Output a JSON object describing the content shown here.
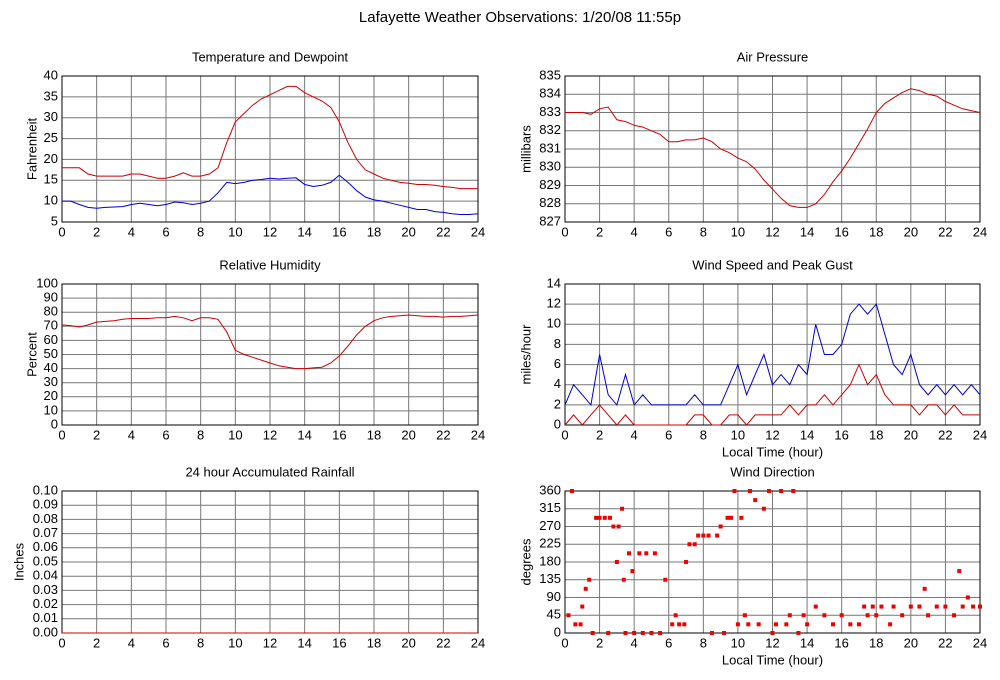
{
  "title": "Lafayette Weather Observations: 1/20/08 11:55p",
  "chart_data": [
    {
      "type": "line",
      "title": "Temperature and Dewpoint",
      "y_label": "Fahrenheit",
      "x": [
        0,
        0.5,
        1,
        1.5,
        2,
        2.5,
        3,
        3.5,
        4,
        4.5,
        5,
        5.5,
        6,
        6.5,
        7,
        7.5,
        8,
        8.5,
        9,
        9.5,
        10,
        10.5,
        11,
        11.5,
        12,
        12.5,
        13,
        13.5,
        14,
        14.5,
        15,
        15.5,
        16,
        16.5,
        17,
        17.5,
        18,
        18.5,
        19,
        19.5,
        20,
        20.5,
        21,
        21.5,
        22,
        22.5,
        23,
        23.5,
        24
      ],
      "series": [
        {
          "color": "#cc0000",
          "values": [
            18,
            18,
            18,
            16.5,
            16,
            16,
            16,
            16,
            16.5,
            16.5,
            16,
            15.5,
            15.5,
            16,
            16.8,
            16,
            16,
            16.5,
            18,
            24,
            29,
            31,
            33,
            34.5,
            35.5,
            36.5,
            37.5,
            37.5,
            36,
            35,
            34,
            32.5,
            29,
            24,
            20,
            17.5,
            16.5,
            15.5,
            15,
            14.5,
            14.3,
            14,
            14,
            13.8,
            13.5,
            13.3,
            13,
            13,
            13
          ]
        },
        {
          "color": "#0000cc",
          "values": [
            10,
            10,
            9.2,
            8.5,
            8.3,
            8.5,
            8.6,
            8.7,
            9.2,
            9.5,
            9.2,
            8.9,
            9.2,
            9.8,
            9.6,
            9.2,
            9.5,
            10,
            12,
            14.5,
            14.2,
            14.5,
            15,
            15.2,
            15.5,
            15.3,
            15.5,
            15.6,
            14,
            13.5,
            13.8,
            14.5,
            16.2,
            14.5,
            12.5,
            11,
            10.3,
            10,
            9.5,
            9,
            8.5,
            8,
            8,
            7.5,
            7.3,
            7,
            6.8,
            6.8,
            7
          ]
        }
      ],
      "xlim": [
        0,
        24
      ],
      "xticks": [
        0,
        2,
        4,
        6,
        8,
        10,
        12,
        14,
        16,
        18,
        20,
        22,
        24
      ],
      "ylim": [
        5,
        40
      ],
      "yticks": [
        5,
        10,
        15,
        20,
        25,
        30,
        35,
        40
      ],
      "grid": true
    },
    {
      "type": "line",
      "title": "Air Pressure",
      "y_label": "millibars",
      "x": [
        0,
        0.5,
        1,
        1.5,
        2,
        2.5,
        3,
        3.5,
        4,
        4.5,
        5,
        5.5,
        6,
        6.5,
        7,
        7.5,
        8,
        8.5,
        9,
        9.5,
        10,
        10.5,
        11,
        11.5,
        12,
        12.5,
        13,
        13.5,
        14,
        14.5,
        15,
        15.5,
        16,
        16.5,
        17,
        17.5,
        18,
        18.5,
        19,
        19.5,
        20,
        20.5,
        21,
        21.5,
        22,
        22.5,
        23,
        23.5,
        24
      ],
      "series": [
        {
          "color": "#cc0000",
          "values": [
            833,
            833,
            833,
            832.9,
            833.2,
            833.3,
            832.6,
            832.5,
            832.3,
            832.2,
            832.0,
            831.8,
            831.4,
            831.4,
            831.5,
            831.5,
            831.6,
            831.4,
            831.0,
            830.8,
            830.5,
            830.3,
            829.9,
            829.3,
            828.8,
            828.3,
            827.9,
            827.8,
            827.8,
            828.0,
            828.5,
            829.2,
            829.8,
            830.5,
            831.3,
            832.1,
            833.0,
            833.5,
            833.8,
            834.1,
            834.3,
            834.2,
            834.0,
            833.9,
            833.6,
            833.4,
            833.2,
            833.1,
            833.0
          ]
        }
      ],
      "xlim": [
        0,
        24
      ],
      "xticks": [
        0,
        2,
        4,
        6,
        8,
        10,
        12,
        14,
        16,
        18,
        20,
        22,
        24
      ],
      "ylim": [
        827,
        835
      ],
      "yticks": [
        827,
        828,
        829,
        830,
        831,
        832,
        833,
        834,
        835
      ],
      "grid": true
    },
    {
      "type": "line",
      "title": "Relative Humidity",
      "y_label": "Percent",
      "x": [
        0,
        0.5,
        1,
        1.5,
        2,
        2.5,
        3,
        3.5,
        4,
        4.5,
        5,
        5.5,
        6,
        6.5,
        7,
        7.5,
        8,
        8.5,
        9,
        9.5,
        10,
        10.5,
        11,
        11.5,
        12,
        12.5,
        13,
        13.5,
        14,
        14.5,
        15,
        15.5,
        16,
        16.5,
        17,
        17.5,
        18,
        18.5,
        19,
        19.5,
        20,
        20.5,
        21,
        21.5,
        22,
        22.5,
        23,
        23.5,
        24
      ],
      "series": [
        {
          "color": "#cc0000",
          "values": [
            71,
            70.5,
            69.5,
            71,
            73,
            73.5,
            74,
            75,
            75.5,
            75.5,
            75.5,
            76,
            76,
            77,
            76,
            74,
            76,
            76,
            75,
            66,
            53,
            50,
            48,
            46,
            44,
            42,
            41,
            40,
            40,
            40.5,
            41,
            44,
            49,
            56,
            64,
            70,
            74,
            76,
            77,
            77.5,
            78,
            77.5,
            77,
            77,
            76.5,
            77,
            77,
            77.5,
            78
          ]
        }
      ],
      "xlim": [
        0,
        24
      ],
      "xticks": [
        0,
        2,
        4,
        6,
        8,
        10,
        12,
        14,
        16,
        18,
        20,
        22,
        24
      ],
      "ylim": [
        0,
        100
      ],
      "yticks": [
        0,
        10,
        20,
        30,
        40,
        50,
        60,
        70,
        80,
        90,
        100
      ],
      "grid": true
    },
    {
      "type": "line",
      "title": "Wind Speed and Peak Gust",
      "y_label": "miles/hour",
      "x_label": "Local Time (hour)",
      "x": [
        0,
        0.5,
        1,
        1.5,
        2,
        2.5,
        3,
        3.5,
        4,
        4.5,
        5,
        5.5,
        6,
        6.5,
        7,
        7.5,
        8,
        8.5,
        9,
        9.5,
        10,
        10.5,
        11,
        11.5,
        12,
        12.5,
        13,
        13.5,
        14,
        14.5,
        15,
        15.5,
        16,
        16.5,
        17,
        17.5,
        18,
        18.5,
        19,
        19.5,
        20,
        20.5,
        21,
        21.5,
        22,
        22.5,
        23,
        23.5,
        24
      ],
      "series": [
        {
          "color": "#0000cc",
          "values": [
            2,
            4,
            3,
            2,
            7,
            3,
            2,
            5,
            2,
            3,
            2,
            2,
            2,
            2,
            2,
            3,
            2,
            2,
            2,
            4,
            6,
            3,
            5,
            7,
            4,
            5,
            4,
            6,
            5,
            10,
            7,
            7,
            8,
            11,
            12,
            11,
            12,
            9,
            6,
            5,
            7,
            4,
            3,
            4,
            3,
            4,
            3,
            4,
            3
          ]
        },
        {
          "color": "#cc0000",
          "values": [
            0,
            1,
            0,
            1,
            2,
            1,
            0,
            1,
            0,
            0,
            0,
            0,
            0,
            0,
            0,
            1,
            1,
            0,
            0,
            1,
            1,
            0,
            1,
            1,
            1,
            1,
            2,
            1,
            2,
            2,
            3,
            2,
            3,
            4,
            6,
            4,
            5,
            3,
            2,
            2,
            2,
            1,
            2,
            2,
            1,
            2,
            1,
            1,
            1
          ]
        }
      ],
      "xlim": [
        0,
        24
      ],
      "xticks": [
        0,
        2,
        4,
        6,
        8,
        10,
        12,
        14,
        16,
        18,
        20,
        22,
        24
      ],
      "ylim": [
        0,
        14
      ],
      "yticks": [
        0,
        2,
        4,
        6,
        8,
        10,
        12,
        14
      ],
      "grid": true
    },
    {
      "type": "line",
      "title": "24 hour Accumulated Rainfall",
      "y_label": "Inches",
      "x": [
        0,
        24
      ],
      "series": [
        {
          "color": "#cc0000",
          "values": [
            0,
            0
          ]
        }
      ],
      "xlim": [
        0,
        24
      ],
      "xticks": [
        0,
        2,
        4,
        6,
        8,
        10,
        12,
        14,
        16,
        18,
        20,
        22,
        24
      ],
      "ylim": [
        0,
        0.1
      ],
      "yticks": [
        {
          "value": 0,
          "label": "0.00"
        },
        {
          "value": 0.01,
          "label": "0.01"
        },
        {
          "value": 0.02,
          "label": "0.02"
        },
        {
          "value": 0.03,
          "label": "0.03"
        },
        {
          "value": 0.04,
          "label": "0.04"
        },
        {
          "value": 0.05,
          "label": "0.05"
        },
        {
          "value": 0.06,
          "label": "0.06"
        },
        {
          "value": 0.07,
          "label": "0.07"
        },
        {
          "value": 0.08,
          "label": "0.08"
        },
        {
          "value": 0.09,
          "label": "0.09"
        },
        {
          "value": 0.1,
          "label": "0.10"
        }
      ],
      "grid": true
    },
    {
      "type": "scatter",
      "title": "Wind Direction",
      "y_label": "degrees",
      "x_label": "Local Time (hour)",
      "x": [
        0.2,
        0.4,
        0.6,
        0.9,
        1.0,
        1.2,
        1.4,
        1.6,
        1.8,
        2.0,
        2.3,
        2.5,
        2.6,
        2.8,
        3.0,
        3.1,
        3.3,
        3.4,
        3.5,
        3.7,
        3.9,
        4.0,
        4.3,
        4.5,
        4.7,
        5.0,
        5.2,
        5.5,
        5.8,
        6.2,
        6.4,
        6.6,
        6.9,
        7.0,
        7.2,
        7.5,
        7.7,
        8.0,
        8.3,
        8.5,
        8.8,
        9.0,
        9.2,
        9.4,
        9.6,
        9.8,
        10.0,
        10.2,
        10.4,
        10.6,
        10.7,
        11.0,
        11.2,
        11.5,
        11.8,
        12.0,
        12.2,
        12.5,
        12.8,
        13.0,
        13.2,
        13.5,
        13.8,
        14.0,
        14.5,
        15.0,
        15.5,
        16.0,
        16.5,
        17.0,
        17.3,
        17.5,
        17.8,
        18.0,
        18.3,
        18.8,
        19.0,
        19.5,
        20.0,
        20.5,
        20.8,
        21.0,
        21.5,
        22.0,
        22.5,
        22.8,
        23.0,
        23.3,
        23.6,
        24.0
      ],
      "series": [
        {
          "color": "#ee0000",
          "values": [
            45,
            360,
            22,
            22,
            67,
            112,
            135,
            0,
            292,
            292,
            292,
            0,
            292,
            270,
            180,
            270,
            315,
            135,
            0,
            202,
            157,
            0,
            202,
            0,
            202,
            0,
            202,
            0,
            135,
            22,
            45,
            22,
            22,
            180,
            225,
            225,
            247,
            247,
            247,
            0,
            247,
            270,
            0,
            292,
            292,
            360,
            22,
            292,
            45,
            22,
            360,
            337,
            22,
            315,
            360,
            0,
            22,
            360,
            22,
            45,
            360,
            0,
            45,
            22,
            67,
            45,
            22,
            45,
            22,
            22,
            67,
            45,
            67,
            45,
            67,
            22,
            67,
            45,
            67,
            67,
            112,
            45,
            67,
            67,
            45,
            157,
            67,
            90,
            67,
            67
          ]
        }
      ],
      "xlim": [
        0,
        24
      ],
      "xticks": [
        0,
        2,
        4,
        6,
        8,
        10,
        12,
        14,
        16,
        18,
        20,
        22,
        24
      ],
      "ylim": [
        0,
        360
      ],
      "yticks": [
        0,
        45,
        90,
        135,
        180,
        225,
        270,
        315,
        360
      ],
      "grid": true
    }
  ]
}
